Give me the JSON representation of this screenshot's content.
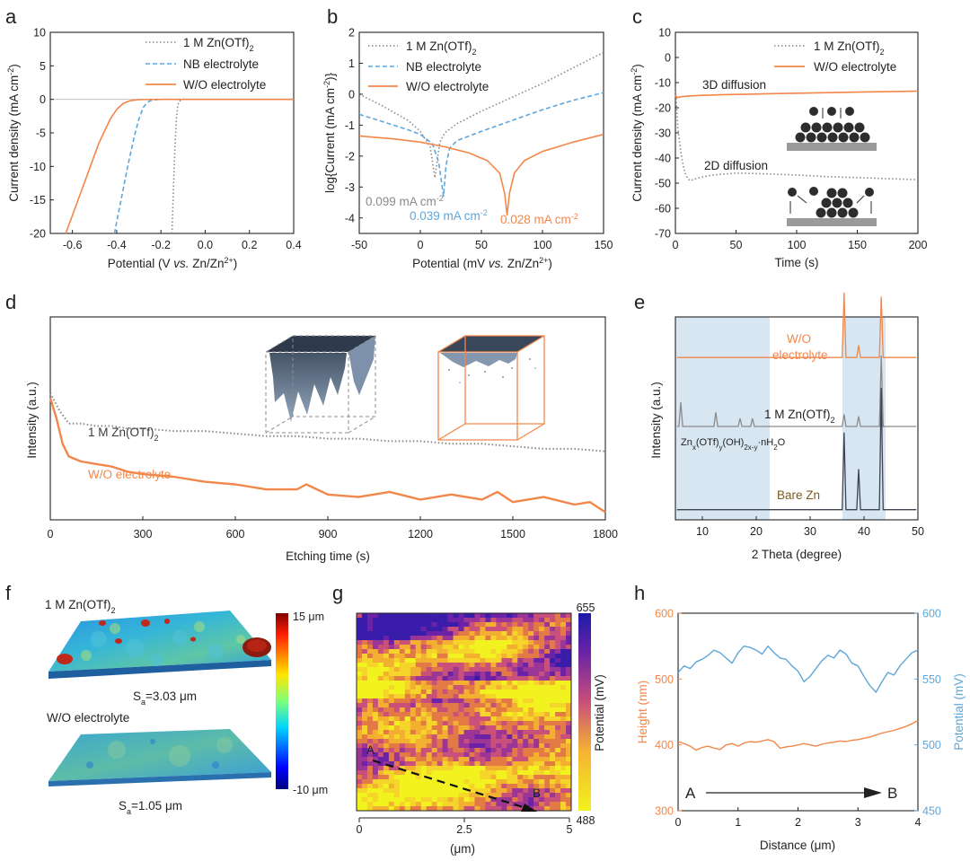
{
  "colors": {
    "orange": "#f2874a",
    "blue": "#5fa6d8",
    "gray": "#8a8a8a",
    "dark": "#3d4350",
    "shade": "#d8e6f2",
    "shadeEdge": "#9fbfd8"
  },
  "panels": {
    "a": {
      "label": "a"
    },
    "b": {
      "label": "b"
    },
    "c": {
      "label": "c"
    },
    "d": {
      "label": "d"
    },
    "e": {
      "label": "e"
    },
    "f": {
      "label": "f"
    },
    "g": {
      "label": "g"
    },
    "h": {
      "label": "h"
    }
  },
  "chart_data": [
    {
      "id": "a",
      "type": "line",
      "xlabel_pre": "Potential (V ",
      "xlabel_it": "vs.",
      "xlabel_post": " Zn/Zn",
      "xlabel_sup": "2+",
      "xlabel_end": ")",
      "ylabel_pre": "Current density (mA cm",
      "ylabel_sup": "-2",
      "ylabel_end": ")",
      "xlim": [
        -0.7,
        0.4
      ],
      "ylim": [
        -20,
        10
      ],
      "xticks": [
        "-0.6",
        "-0.4",
        "-0.2",
        "0.0",
        "0.2",
        "0.4"
      ],
      "xtickvals": [
        -0.6,
        -0.4,
        -0.2,
        0.0,
        0.2,
        0.4
      ],
      "yticks": [
        "10",
        "5",
        "0",
        "-5",
        "-10",
        "-15",
        "-20"
      ],
      "ytickvals": [
        10,
        5,
        0,
        -5,
        -10,
        -15,
        -20
      ],
      "legend": {
        "s1_main": "1 M Zn(OTf)",
        "s1_sub": "2",
        "s2": "NB electrolyte",
        "s3": "W/O electrolyte"
      },
      "series": [
        {
          "name": "1 M Zn(OTf)2",
          "style": "dot",
          "color": "gray",
          "x": [
            -0.15,
            -0.145,
            -0.14,
            -0.135,
            -0.13,
            -0.125,
            -0.12,
            -0.11,
            -0.1,
            0.0,
            0.4
          ],
          "y": [
            -20,
            -15,
            -10,
            -6,
            -3,
            -1.2,
            -0.4,
            -0.1,
            0,
            0,
            0
          ]
        },
        {
          "name": "NB electrolyte",
          "style": "dash",
          "color": "blue",
          "x": [
            -0.41,
            -0.38,
            -0.35,
            -0.32,
            -0.3,
            -0.28,
            -0.26,
            -0.24,
            -0.2,
            0.0,
            0.4
          ],
          "y": [
            -20,
            -15,
            -10,
            -5.5,
            -3,
            -1.2,
            -0.4,
            -0.1,
            0,
            0,
            0
          ]
        },
        {
          "name": "W/O electrolyte",
          "style": "solid",
          "color": "orange",
          "x": [
            -0.63,
            -0.58,
            -0.53,
            -0.48,
            -0.43,
            -0.4,
            -0.37,
            -0.34,
            -0.3,
            -0.25,
            0.0,
            0.4
          ],
          "y": [
            -20,
            -15.5,
            -11,
            -6.5,
            -3,
            -1.5,
            -0.6,
            -0.2,
            -0.05,
            0,
            0,
            0
          ]
        }
      ]
    },
    {
      "id": "b",
      "type": "line",
      "xlabel_pre": "Potential (mV ",
      "xlabel_it": "vs.",
      "xlabel_post": " Zn/Zn",
      "xlabel_sup": "2+",
      "xlabel_end": ")",
      "ylabel_pre": "log{Current (mA cm",
      "ylabel_sup": "-2",
      "ylabel_end": ")}",
      "xlim": [
        -50,
        150
      ],
      "ylim": [
        -4.5,
        2
      ],
      "xticks": [
        "-50",
        "0",
        "50",
        "100",
        "150"
      ],
      "xtickvals": [
        -50,
        0,
        50,
        100,
        150
      ],
      "yticks": [
        "2",
        "1",
        "0",
        "-1",
        "-2",
        "-3",
        "-4"
      ],
      "ytickvals": [
        2,
        1,
        0,
        -1,
        -2,
        -3,
        -4
      ],
      "legend": {
        "s1_main": "1 M Zn(OTf)",
        "s1_sub": "2",
        "s2": "NB electrolyte",
        "s3": "W/O electrolyte"
      },
      "annotations": [
        {
          "value": "0.099 mA cm",
          "sup": "-2",
          "color": "gray"
        },
        {
          "value": "0.039 mA cm",
          "sup": "-2",
          "color": "blue"
        },
        {
          "value": "0.028 mA cm",
          "sup": "-2",
          "color": "orange"
        }
      ],
      "series": [
        {
          "name": "1 M Zn(OTf)2",
          "style": "dot",
          "color": "gray",
          "x": [
            -50,
            -30,
            -10,
            0,
            8,
            12,
            14,
            16,
            20,
            30,
            50,
            75,
            100,
            125,
            150
          ],
          "y": [
            0,
            -0.4,
            -0.85,
            -1.2,
            -1.7,
            -2.7,
            -2.1,
            -1.55,
            -1.25,
            -0.95,
            -0.55,
            -0.1,
            0.35,
            0.85,
            1.35
          ]
        },
        {
          "name": "NB electrolyte",
          "style": "dash",
          "color": "blue",
          "x": [
            -50,
            -30,
            -10,
            0,
            10,
            15,
            19,
            21,
            24,
            30,
            50,
            75,
            100,
            125,
            150
          ],
          "y": [
            -0.65,
            -0.9,
            -1.15,
            -1.3,
            -1.6,
            -2.2,
            -3.3,
            -2.3,
            -1.75,
            -1.5,
            -1.2,
            -0.85,
            -0.5,
            -0.2,
            0.05
          ]
        },
        {
          "name": "W/O electrolyte",
          "style": "solid",
          "color": "orange",
          "x": [
            -50,
            -20,
            0,
            20,
            40,
            55,
            65,
            69,
            71,
            73,
            77,
            85,
            100,
            125,
            150
          ],
          "y": [
            -1.35,
            -1.45,
            -1.55,
            -1.7,
            -1.9,
            -2.15,
            -2.55,
            -3.2,
            -3.9,
            -3.2,
            -2.55,
            -2.15,
            -1.85,
            -1.55,
            -1.3
          ]
        }
      ]
    },
    {
      "id": "c",
      "type": "line",
      "xlabel": "Time (s)",
      "ylabel_pre": "Current density (mA cm",
      "ylabel_sup": "-2",
      "ylabel_end": ")",
      "xlim": [
        0,
        200
      ],
      "ylim": [
        -70,
        10
      ],
      "xticks": [
        "0",
        "50",
        "100",
        "150",
        "200"
      ],
      "xtickvals": [
        0,
        50,
        100,
        150,
        200
      ],
      "yticks": [
        "10",
        "0",
        "-10",
        "-20",
        "-30",
        "-40",
        "-50",
        "-60",
        "-70"
      ],
      "ytickvals": [
        10,
        0,
        -10,
        -20,
        -30,
        -40,
        -50,
        -60,
        -70
      ],
      "legend": {
        "s1_main": "1 M Zn(OTf)",
        "s1_sub": "2",
        "s3": "W/O electrolyte"
      },
      "labels": {
        "top": "3D diffusion",
        "bottom": "2D diffusion"
      },
      "series": [
        {
          "name": "1 M Zn(OTf)2",
          "style": "dot",
          "color": "gray",
          "x": [
            0,
            1,
            2,
            4,
            6,
            8,
            10,
            12,
            15,
            20,
            30,
            50,
            75,
            100,
            125,
            150,
            175,
            200
          ],
          "y": [
            -12,
            -20,
            -28,
            -36,
            -42,
            -46,
            -48,
            -49,
            -48.5,
            -47.8,
            -46.8,
            -46,
            -46.3,
            -46.8,
            -47.4,
            -47.8,
            -48.2,
            -48.6
          ]
        },
        {
          "name": "W/O electrolyte",
          "style": "solid",
          "color": "orange",
          "x": [
            0,
            1,
            3,
            5,
            10,
            20,
            40,
            60,
            80,
            100,
            125,
            150,
            175,
            200
          ],
          "y": [
            -15,
            -16,
            -15.8,
            -15.6,
            -15.4,
            -15.1,
            -14.8,
            -14.6,
            -14.4,
            -14.2,
            -14.0,
            -13.8,
            -13.6,
            -13.4
          ]
        }
      ]
    },
    {
      "id": "d",
      "type": "line",
      "xlabel": "Etching time (s)",
      "ylabel": "Intensity (a.u.)",
      "xlim": [
        0,
        1800
      ],
      "xticks": [
        "0",
        "300",
        "600",
        "900",
        "1200",
        "1500",
        "1800"
      ],
      "xtickvals": [
        0,
        300,
        600,
        900,
        1200,
        1500,
        1800
      ],
      "labels": {
        "s1_main": "1 M Zn(OTf)",
        "s1_sub": "2",
        "s2": "W/O electrolyte"
      },
      "series": [
        {
          "name": "1 M Zn(OTf)2",
          "style": "dot",
          "color": "gray",
          "x": [
            0,
            30,
            60,
            100,
            150,
            200,
            250,
            300,
            400,
            500,
            600,
            700,
            800,
            900,
            1000,
            1100,
            1200,
            1300,
            1400,
            1500,
            1600,
            1700,
            1800
          ],
          "y": [
            0.7,
            0.63,
            0.58,
            0.58,
            0.57,
            0.57,
            0.56,
            0.56,
            0.55,
            0.55,
            0.54,
            0.53,
            0.53,
            0.52,
            0.52,
            0.51,
            0.51,
            0.5,
            0.5,
            0.49,
            0.48,
            0.48,
            0.47
          ]
        },
        {
          "name": "W/O electrolyte",
          "style": "solid",
          "color": "orange",
          "x": [
            0,
            20,
            40,
            60,
            100,
            150,
            200,
            250,
            300,
            400,
            500,
            600,
            700,
            800,
            830,
            900,
            1000,
            1100,
            1200,
            1300,
            1400,
            1450,
            1500,
            1600,
            1700,
            1750,
            1800
          ],
          "y": [
            0.68,
            0.6,
            0.5,
            0.45,
            0.43,
            0.42,
            0.41,
            0.39,
            0.38,
            0.37,
            0.35,
            0.34,
            0.32,
            0.32,
            0.34,
            0.3,
            0.29,
            0.31,
            0.28,
            0.3,
            0.28,
            0.31,
            0.27,
            0.29,
            0.26,
            0.27,
            0.23
          ]
        }
      ]
    },
    {
      "id": "e",
      "type": "line",
      "xlabel": "2 Theta (degree)",
      "ylabel": "Intensity (a.u.)",
      "xlim": [
        5,
        50
      ],
      "xticks": [
        "10",
        "20",
        "30",
        "40",
        "50"
      ],
      "xtickvals": [
        10,
        20,
        30,
        40,
        50
      ],
      "shaded_ranges": [
        [
          5,
          22.5
        ],
        [
          36,
          44
        ]
      ],
      "labels": {
        "wo1": "W/O",
        "wo2": "electrolyte",
        "zn_main": "1 M Zn(OTf)",
        "zn_sub": "2",
        "hyd": [
          "Zn",
          "x",
          "(OTf)",
          "y",
          "(OH)",
          "2x-y",
          "·nH",
          "2",
          "O"
        ],
        "bare": "Bare Zn"
      },
      "series": [
        {
          "name": "W/O electrolyte",
          "color": "orange",
          "baseline": 0.8,
          "peaks": [
            [
              36.3,
              0.32
            ],
            [
              39.0,
              0.06
            ],
            [
              43.2,
              0.3
            ]
          ]
        },
        {
          "name": "1 M Zn(OTf)2",
          "color": "gray",
          "baseline": 0.46,
          "peaks": [
            [
              6.0,
              0.12
            ],
            [
              12.5,
              0.07
            ],
            [
              17.0,
              0.04
            ],
            [
              19.3,
              0.04
            ],
            [
              36.3,
              0.06
            ],
            [
              39.0,
              0.05
            ],
            [
              43.2,
              0.35
            ]
          ]
        },
        {
          "name": "Bare Zn",
          "color": "dark",
          "baseline": 0.05,
          "peaks": [
            [
              36.3,
              0.38
            ],
            [
              39.0,
              0.2
            ],
            [
              43.2,
              0.6
            ]
          ]
        }
      ]
    },
    {
      "id": "f",
      "type": "other",
      "top_label_main": "1 M Zn(OTf)",
      "top_label_sub": "2",
      "top_sa_main": "S",
      "top_sa_sub": "a",
      "top_sa_val": "=3.03 μm",
      "bottom_label": "W/O electrolyte",
      "bottom_sa_main": "S",
      "bottom_sa_sub": "a",
      "bottom_sa_val": "=1.05 μm",
      "colorbar_max": "15 μm",
      "colorbar_min": "-10 μm"
    },
    {
      "id": "g",
      "type": "heatmap",
      "xlabel": "(μm)",
      "xticks": [
        "0",
        "2.5",
        "5"
      ],
      "xtickvals": [
        0,
        2.5,
        5
      ],
      "xlim": [
        0,
        5
      ],
      "colorbar_label": "Potential (mV)",
      "colorbar_max": "655",
      "colorbar_min": "488",
      "point_a": "A",
      "point_b": "B"
    },
    {
      "id": "h",
      "type": "line",
      "xlabel": "Distance (μm)",
      "ylabel_left": "Height (nm)",
      "ylabel_right": "Potential (mV)",
      "xlim": [
        0,
        4
      ],
      "ylim_left": [
        300,
        600
      ],
      "ylim_right": [
        450,
        600
      ],
      "xticks": [
        "0",
        "1",
        "2",
        "3",
        "4"
      ],
      "xtickvals": [
        0,
        1,
        2,
        3,
        4
      ],
      "yticks_left": [
        "600",
        "500",
        "400",
        "300"
      ],
      "ytickvals_left": [
        600,
        500,
        400,
        300
      ],
      "yticks_right": [
        "600",
        "550",
        "500",
        "450"
      ],
      "ytickvals_right": [
        600,
        550,
        500,
        450
      ],
      "point_a": "A",
      "point_b": "B",
      "series": [
        {
          "name": "Height",
          "axis": "left",
          "color": "orange",
          "x": [
            0,
            0.1,
            0.2,
            0.3,
            0.4,
            0.5,
            0.6,
            0.7,
            0.8,
            0.9,
            1.0,
            1.1,
            1.2,
            1.3,
            1.4,
            1.5,
            1.6,
            1.7,
            1.8,
            1.9,
            2.0,
            2.1,
            2.2,
            2.3,
            2.4,
            2.5,
            2.6,
            2.7,
            2.8,
            2.9,
            3.0,
            3.1,
            3.2,
            3.3,
            3.4,
            3.5,
            3.6,
            3.7,
            3.8,
            3.9,
            4.0
          ],
          "y": [
            405,
            402,
            398,
            392,
            396,
            398,
            395,
            393,
            400,
            402,
            398,
            403,
            405,
            404,
            406,
            408,
            405,
            395,
            397,
            398,
            400,
            402,
            400,
            398,
            401,
            403,
            404,
            406,
            405,
            407,
            408,
            410,
            412,
            415,
            418,
            420,
            422,
            425,
            428,
            432,
            437
          ]
        },
        {
          "name": "Potential",
          "axis": "right",
          "color": "blue",
          "x": [
            0,
            0.1,
            0.2,
            0.3,
            0.4,
            0.5,
            0.6,
            0.7,
            0.8,
            0.9,
            1.0,
            1.1,
            1.2,
            1.3,
            1.4,
            1.5,
            1.6,
            1.7,
            1.8,
            1.9,
            2.0,
            2.1,
            2.2,
            2.3,
            2.4,
            2.5,
            2.6,
            2.7,
            2.8,
            2.9,
            3.0,
            3.1,
            3.2,
            3.3,
            3.4,
            3.5,
            3.6,
            3.7,
            3.8,
            3.9,
            4.0
          ],
          "y": [
            555,
            560,
            558,
            563,
            565,
            568,
            572,
            570,
            566,
            562,
            570,
            575,
            574,
            572,
            569,
            575,
            570,
            566,
            565,
            560,
            556,
            548,
            552,
            558,
            564,
            568,
            566,
            572,
            569,
            562,
            560,
            552,
            545,
            540,
            548,
            555,
            553,
            560,
            565,
            570,
            572
          ]
        }
      ]
    }
  ]
}
